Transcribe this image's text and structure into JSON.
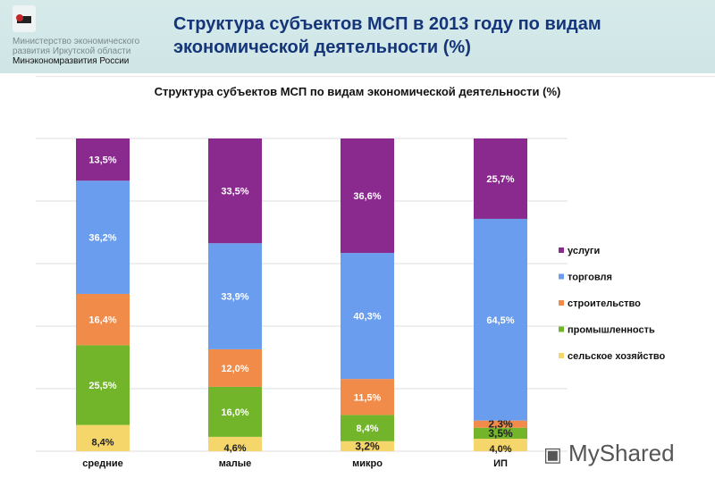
{
  "header": {
    "title": "Структура субъектов МСП в 2013 году по видам экономической деятельности (%)",
    "ministry_line1": "Министерство экономического",
    "ministry_line2": "развития Иркутской области",
    "ministry_line3": "Минэкономразвития России"
  },
  "watermark": "MyShared",
  "chart_data": {
    "type": "bar",
    "stacked": true,
    "title": "Структура субъектов МСП по видам экономической деятельности (%)",
    "categories": [
      "средние",
      "малые",
      "микро",
      "ИП"
    ],
    "ylim": [
      0,
      100
    ],
    "grid": true,
    "legend": "right",
    "series": [
      {
        "name": "сельское хозяйство",
        "color": "#F5D66B",
        "values": [
          8.4,
          4.6,
          3.2,
          4.0
        ],
        "labels": [
          "8,4%",
          "4,6%",
          "3,2%",
          "4,0%"
        ]
      },
      {
        "name": "промышленность",
        "color": "#72B52A",
        "values": [
          25.5,
          16.0,
          8.4,
          3.5
        ],
        "labels": [
          "25,5%",
          "16,0%",
          "8,4%",
          "3,5%"
        ]
      },
      {
        "name": "строительство",
        "color": "#F08B4A",
        "values": [
          16.4,
          12.0,
          11.5,
          2.3
        ],
        "labels": [
          "16,4%",
          "12,0%",
          "11,5%",
          "2,3%"
        ]
      },
      {
        "name": "торговля",
        "color": "#6A9DED",
        "values": [
          36.2,
          33.9,
          40.3,
          64.5
        ],
        "labels": [
          "36,2%",
          "33,9%",
          "40,3%",
          "64,5%"
        ]
      },
      {
        "name": "услуги",
        "color": "#8B2A8E",
        "values": [
          13.5,
          33.5,
          36.6,
          25.7
        ],
        "labels": [
          "13,5%",
          "33,5%",
          "36,6%",
          "25,7%"
        ]
      }
    ]
  }
}
